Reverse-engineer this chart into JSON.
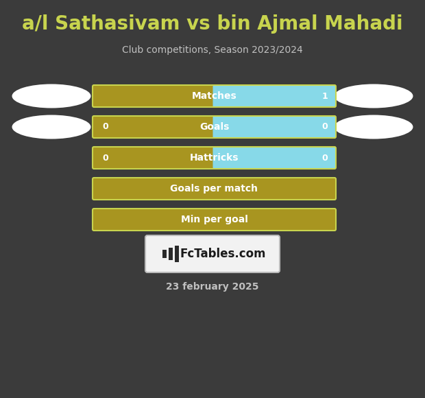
{
  "title": "a/l Sathasivam vs bin Ajmal Mahadi",
  "subtitle": "Club competitions, Season 2023/2024",
  "date_label": "23 february 2025",
  "bg_color": "#3b3b3b",
  "title_color": "#c8d44e",
  "subtitle_color": "#c0c0c0",
  "date_color": "#c0c0c0",
  "bar_gold": "#a89520",
  "bar_cyan": "#87d9e8",
  "bar_outline": "#c8d44e",
  "rows": [
    {
      "label": "Matches",
      "left_val": null,
      "right_val": "1",
      "split": true,
      "has_ovals": true
    },
    {
      "label": "Goals",
      "left_val": "0",
      "right_val": "0",
      "split": true,
      "has_ovals": true
    },
    {
      "label": "Hattricks",
      "left_val": "0",
      "right_val": "0",
      "split": true,
      "has_ovals": false
    },
    {
      "label": "Goals per match",
      "left_val": null,
      "right_val": null,
      "split": false,
      "has_ovals": false
    },
    {
      "label": "Min per goal",
      "left_val": null,
      "right_val": null,
      "split": false,
      "has_ovals": false
    }
  ],
  "logo_text": "FcTables.com",
  "logo_bg": "#f2f2f2",
  "logo_border": "#bbbbbb"
}
